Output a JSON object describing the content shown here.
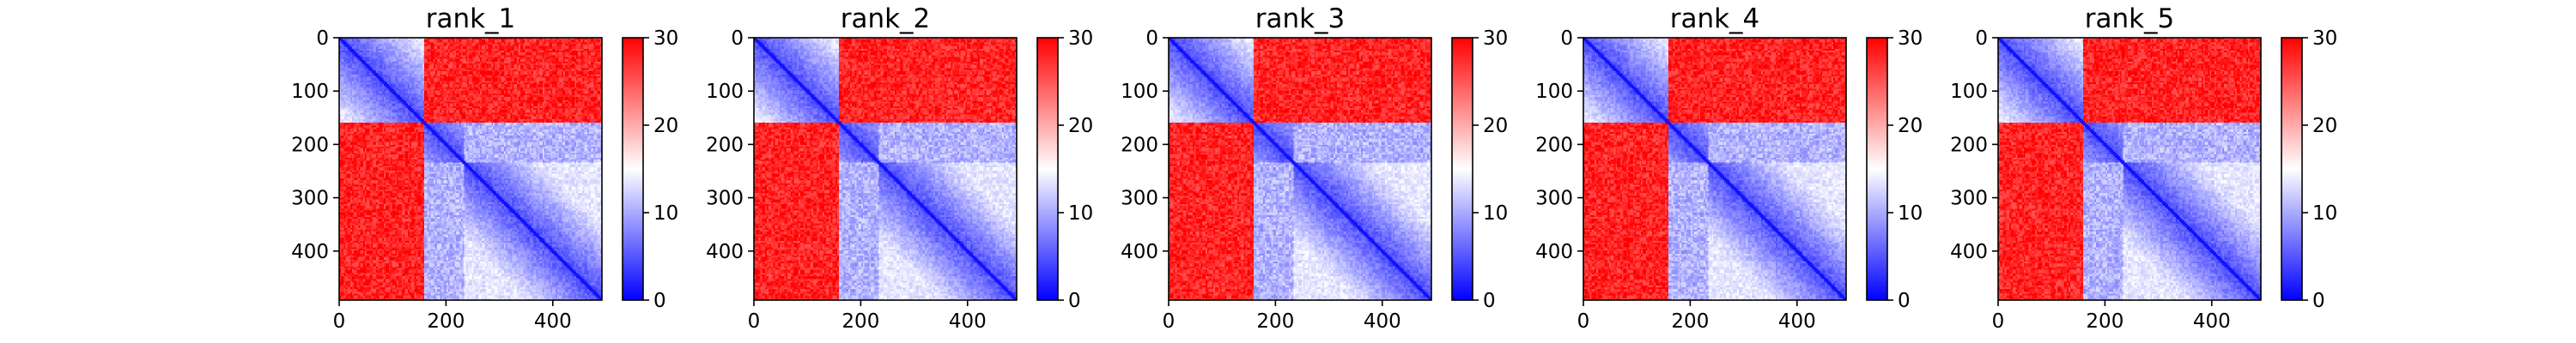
{
  "chart_data": {
    "type": "heatmap",
    "colormap": {
      "low": "#0000ff",
      "mid": "#ffffff",
      "high": "#ff0000"
    },
    "value_range": [
      0,
      30
    ],
    "colorbar_ticks": [
      0,
      10,
      20,
      30
    ],
    "x_range": [
      0,
      492
    ],
    "y_range": [
      492,
      0
    ],
    "x_ticks": [
      0,
      200,
      400
    ],
    "y_ticks": [
      0,
      100,
      200,
      300,
      400
    ],
    "domain_boundaries": [
      160,
      235
    ],
    "grid": false,
    "panels": [
      {
        "title": "rank_1"
      },
      {
        "title": "rank_2"
      },
      {
        "title": "rank_3"
      },
      {
        "title": "rank_4"
      },
      {
        "title": "rank_5"
      }
    ]
  }
}
